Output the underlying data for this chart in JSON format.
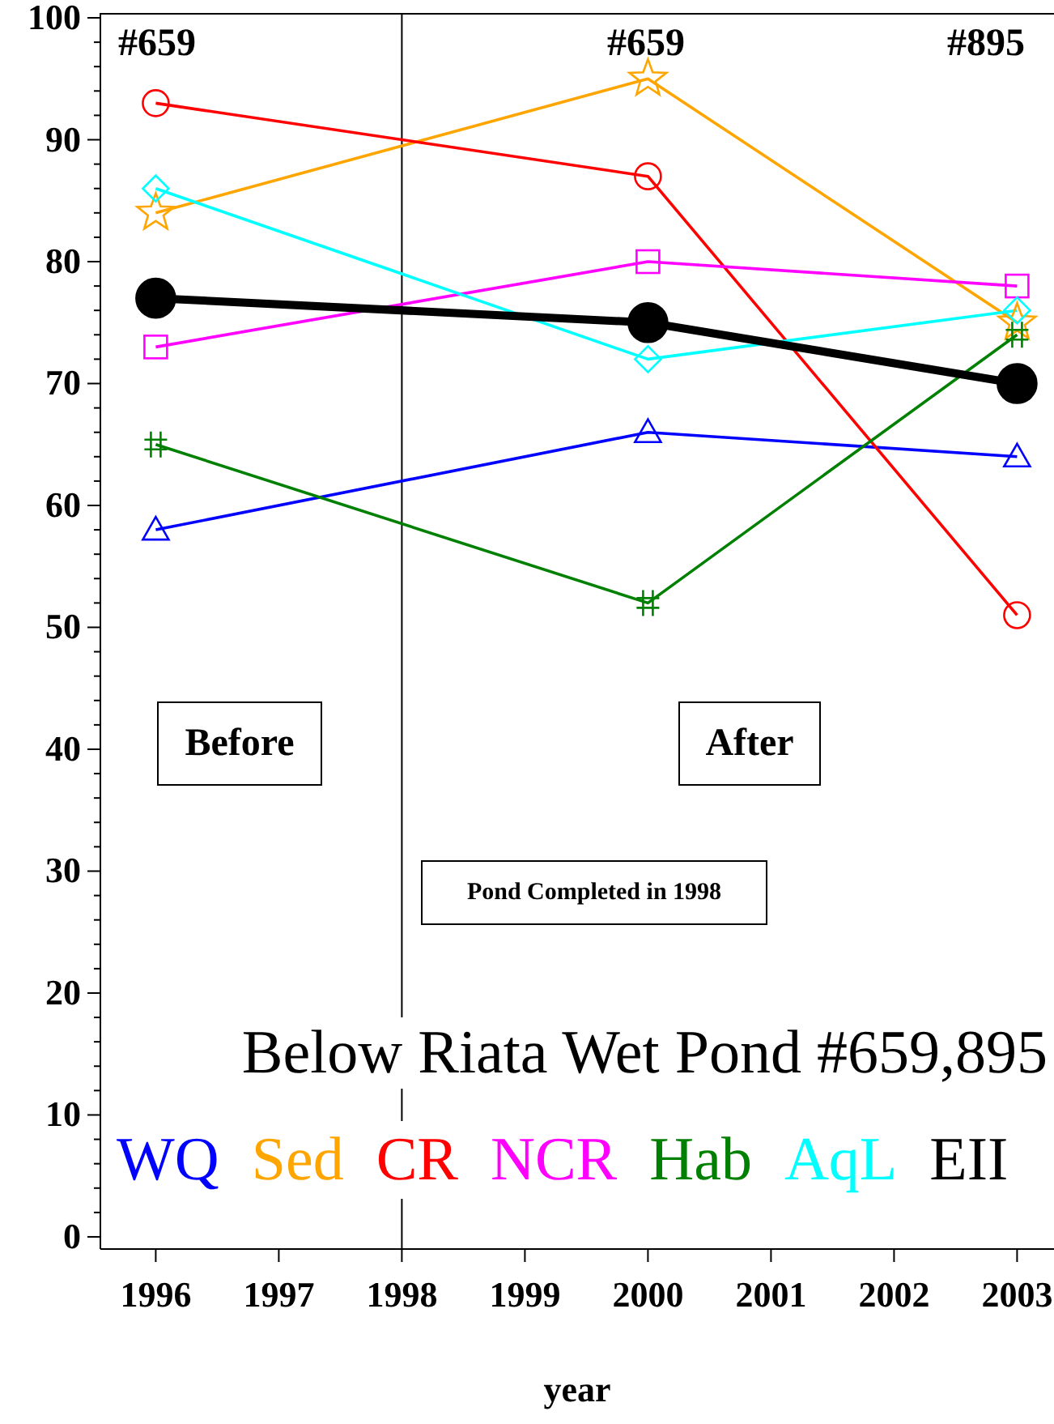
{
  "chart_data": {
    "type": "line",
    "title": "Below Riata Wet Pond #659,895",
    "xlabel": "year",
    "x": [
      1996,
      2000,
      2003
    ],
    "xlim": [
      1995.55,
      2003.3
    ],
    "xticks": [
      1996,
      1997,
      1998,
      1999,
      2000,
      2001,
      2002,
      2003
    ],
    "ylim": [
      -1,
      100.4
    ],
    "yticks": [
      0,
      {
        "value": 2,
        "label": null
      },
      {
        "value": 4,
        "label": null
      },
      {
        "value": 6,
        "label": null
      },
      {
        "value": 8,
        "label": null
      },
      10,
      {
        "value": 12,
        "label": null
      },
      {
        "value": 14,
        "label": null
      },
      {
        "value": 16,
        "label": null
      },
      {
        "value": 18,
        "label": null
      },
      20,
      {
        "value": 22,
        "label": null
      },
      {
        "value": 24,
        "label": null
      },
      {
        "value": 26,
        "label": null
      },
      {
        "value": 28,
        "label": null
      },
      30,
      {
        "value": 32,
        "label": null
      },
      {
        "value": 34,
        "label": null
      },
      {
        "value": 36,
        "label": null
      },
      {
        "value": 38,
        "label": null
      },
      40,
      {
        "value": 42,
        "label": null
      },
      {
        "value": 44,
        "label": null
      },
      {
        "value": 46,
        "label": null
      },
      {
        "value": 48,
        "label": null
      },
      50,
      {
        "value": 52,
        "label": null
      },
      {
        "value": 54,
        "label": null
      },
      {
        "value": 56,
        "label": null
      },
      {
        "value": 58,
        "label": null
      },
      60,
      {
        "value": 62,
        "label": null
      },
      {
        "value": 64,
        "label": null
      },
      {
        "value": 66,
        "label": null
      },
      {
        "value": 68,
        "label": null
      },
      70,
      {
        "value": 72,
        "label": null
      },
      {
        "value": 74,
        "label": null
      },
      {
        "value": 76,
        "label": null
      },
      {
        "value": 78,
        "label": null
      },
      80,
      {
        "value": 82,
        "label": null
      },
      {
        "value": 84,
        "label": null
      },
      {
        "value": 86,
        "label": null
      },
      {
        "value": 88,
        "label": null
      },
      90,
      {
        "value": 92,
        "label": null
      },
      {
        "value": 94,
        "label": null
      },
      {
        "value": 96,
        "label": null
      },
      {
        "value": 98,
        "label": null
      },
      100
    ],
    "grid": false,
    "legend": "bottom",
    "line_style": "solid",
    "series": [
      {
        "name": "WQ",
        "color": "#0000ff",
        "marker": "triangle",
        "values": [
          58,
          66,
          64
        ]
      },
      {
        "name": "Sed",
        "color": "#ffa500",
        "marker": "star",
        "values": [
          84,
          95,
          75
        ]
      },
      {
        "name": "CR",
        "color": "#ff0000",
        "marker": "circle",
        "values": [
          93,
          87,
          51
        ]
      },
      {
        "name": "NCR",
        "color": "#ff00ff",
        "marker": "square",
        "values": [
          73,
          80,
          78
        ]
      },
      {
        "name": "Hab",
        "color": "#008000",
        "marker": "cross",
        "values": [
          65,
          52,
          74
        ]
      },
      {
        "name": "AqL",
        "color": "#00ffff",
        "marker": "diamond",
        "values": [
          86,
          72,
          76
        ]
      },
      {
        "name": "EII",
        "color": "#000000",
        "marker": "circle",
        "values": [
          77,
          75,
          70
        ]
      }
    ],
    "ref_lines": [
      {
        "axis": "x",
        "value": 1998,
        "color": "#000000"
      }
    ],
    "annotations": [
      "#659",
      "#659",
      "#895",
      "Before",
      "After",
      "Pond Completed in 1998"
    ]
  }
}
